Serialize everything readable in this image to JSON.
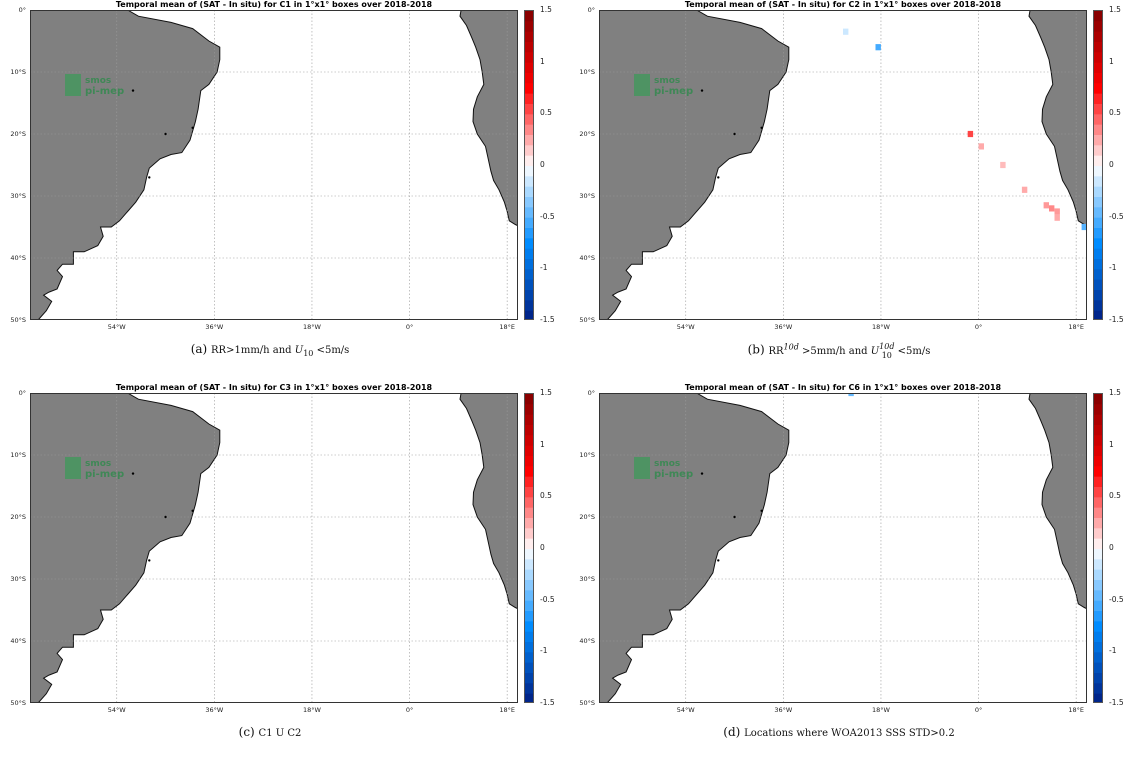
{
  "panels": [
    {
      "title": "Temporal mean of (SAT - In situ) for C1 in 1°x1° boxes over 2018-2018",
      "caption_letter": "(a)",
      "caption_parts": [
        "RR>1mm/h and ",
        "U",
        "10",
        " <5m/s"
      ],
      "points": []
    },
    {
      "title": "Temporal mean of (SAT - In situ) for C2 in 1°x1° boxes over 2018-2018",
      "caption_letter": "(b)",
      "caption_parts": [
        "RR",
        "10d",
        " >5mm/h and ",
        "U",
        "10",
        "10d",
        " <5m/s"
      ],
      "points": [
        {
          "lon": -24.5,
          "lat": -3.5,
          "value": -0.15
        },
        {
          "lon": -18.5,
          "lat": -6.0,
          "value": -0.55
        },
        {
          "lon": -1.5,
          "lat": -20.0,
          "value": 0.55
        },
        {
          "lon": 0.5,
          "lat": -22.0,
          "value": 0.25
        },
        {
          "lon": 4.5,
          "lat": -25.0,
          "value": 0.2
        },
        {
          "lon": 8.5,
          "lat": -29.0,
          "value": 0.25
        },
        {
          "lon": 12.5,
          "lat": -31.5,
          "value": 0.3
        },
        {
          "lon": 13.5,
          "lat": -32.0,
          "value": 0.35
        },
        {
          "lon": 14.5,
          "lat": -32.5,
          "value": 0.3
        },
        {
          "lon": 14.5,
          "lat": -33.5,
          "value": 0.25
        },
        {
          "lon": 19.5,
          "lat": -35.0,
          "value": -0.5
        }
      ]
    },
    {
      "title": "Temporal mean of (SAT - In situ) for C3 in 1°x1° boxes over 2018-2018",
      "caption_letter": "(c)",
      "caption_parts": [
        "C1 U C2"
      ],
      "points": []
    },
    {
      "title": "Temporal mean of (SAT - In situ) for C6 in 1°x1° boxes over 2018-2018",
      "caption_letter": "(d)",
      "caption_parts": [
        "Locations where WOA2013 SSS STD>0.2"
      ],
      "points": [
        {
          "lon": -23.5,
          "lat": 0.0,
          "value": -0.45
        }
      ]
    }
  ],
  "map": {
    "lon_range": [
      -70,
      20
    ],
    "lat_range": [
      -50,
      0
    ],
    "lon_ticks": [
      {
        "lon": -54,
        "label": "54°W"
      },
      {
        "lon": -36,
        "label": "36°W"
      },
      {
        "lon": -18,
        "label": "18°W"
      },
      {
        "lon": 0,
        "label": "0°"
      },
      {
        "lon": 18,
        "label": "18°E"
      }
    ],
    "lat_ticks": [
      {
        "lat": 0,
        "label": "0°"
      },
      {
        "lat": -10,
        "label": "10°S"
      },
      {
        "lat": -20,
        "label": "20°S"
      },
      {
        "lat": -30,
        "label": "30°S"
      },
      {
        "lat": -40,
        "label": "40°S"
      },
      {
        "lat": -50,
        "label": "50°S"
      }
    ],
    "land_color": "#808080",
    "ocean_color": "#ffffff",
    "grid": true
  },
  "colorbar": {
    "range": [
      -1.5,
      1.5
    ],
    "ticks": [
      {
        "value": 1.5,
        "label": "1.5"
      },
      {
        "value": 1,
        "label": "1"
      },
      {
        "value": 0.5,
        "label": "0.5"
      },
      {
        "value": 0,
        "label": "0"
      },
      {
        "value": -0.5,
        "label": "-0.5"
      },
      {
        "value": -1,
        "label": "-1"
      },
      {
        "value": -1.5,
        "label": "-1.5"
      }
    ]
  },
  "watermark": {
    "line1": "smos",
    "line2": "pi-mep"
  }
}
